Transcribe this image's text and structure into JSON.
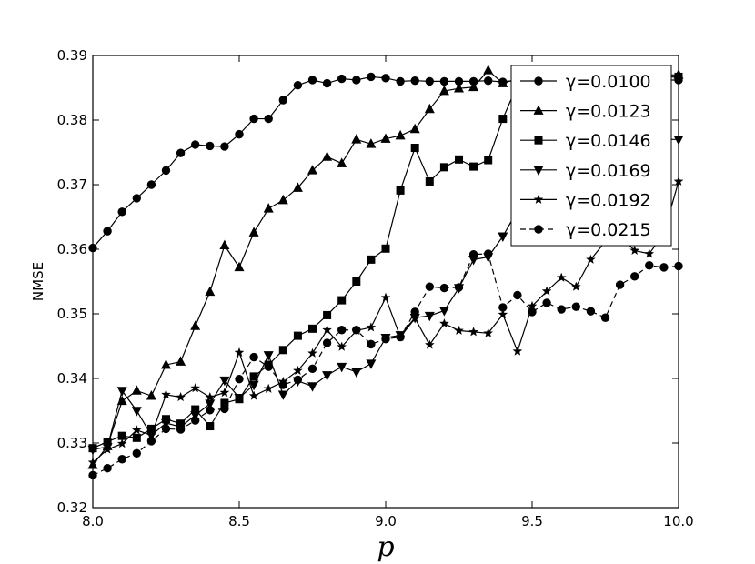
{
  "chart_data": {
    "type": "line",
    "xlabel": "p",
    "ylabel": "NMSE",
    "xlim": [
      8.0,
      10.0
    ],
    "ylim": [
      0.32,
      0.39
    ],
    "xticks": [
      "8.0",
      "8.5",
      "9.0",
      "9.5",
      "10.0"
    ],
    "yticks": [
      "0.32",
      "0.33",
      "0.34",
      "0.35",
      "0.36",
      "0.37",
      "0.38",
      "0.39"
    ],
    "xtick_values": [
      8.0,
      8.5,
      9.0,
      9.5,
      10.0
    ],
    "ytick_values": [
      0.32,
      0.33,
      0.34,
      0.35,
      0.36,
      0.37,
      0.38,
      0.39
    ],
    "legend_position": "top-right",
    "grid": false,
    "x": [
      8.0,
      8.05,
      8.1,
      8.15,
      8.2,
      8.25,
      8.3,
      8.35,
      8.4,
      8.45,
      8.5,
      8.55,
      8.6,
      8.65,
      8.7,
      8.75,
      8.8,
      8.85,
      8.9,
      8.95,
      9.0,
      9.05,
      9.1,
      9.15,
      9.2,
      9.25,
      9.3,
      9.35,
      9.4,
      9.45,
      9.5,
      9.55,
      9.6,
      9.65,
      9.7,
      9.75,
      9.8,
      9.85,
      9.9,
      9.95,
      10.0
    ],
    "series": [
      {
        "name": "γ=0.0100",
        "marker": "circle",
        "linestyle": "solid",
        "values": [
          0.3602,
          0.3628,
          0.3658,
          0.3679,
          0.37,
          0.3722,
          0.3749,
          0.3762,
          0.376,
          0.3759,
          0.3778,
          0.3802,
          0.3802,
          0.3831,
          0.3854,
          0.3862,
          0.3857,
          0.3864,
          0.3862,
          0.3867,
          0.3865,
          0.386,
          0.3861,
          0.386,
          0.386,
          0.386,
          0.386,
          0.3861,
          0.3859,
          0.3862,
          0.3862,
          0.3862,
          0.3862,
          0.3862,
          0.3862,
          0.3862,
          0.3862,
          0.3862,
          0.3862,
          0.3862,
          0.3862
        ]
      },
      {
        "name": "γ=0.0123",
        "marker": "triangle-up",
        "linestyle": "solid",
        "values": [
          0.3266,
          0.3295,
          0.3365,
          0.3381,
          0.3373,
          0.3421,
          0.3426,
          0.3481,
          0.3534,
          0.3606,
          0.3572,
          0.3626,
          0.3663,
          0.3676,
          0.3695,
          0.3722,
          0.3743,
          0.3733,
          0.377,
          0.3763,
          0.3771,
          0.3776,
          0.3786,
          0.3817,
          0.3845,
          0.3849,
          0.3851,
          0.3877,
          0.3857,
          0.3864,
          0.387,
          0.387,
          0.387,
          0.387,
          0.387,
          0.387,
          0.387,
          0.387,
          0.387,
          0.387,
          0.387
        ]
      },
      {
        "name": "γ=0.0146",
        "marker": "square",
        "linestyle": "solid",
        "values": [
          0.3292,
          0.3302,
          0.3311,
          0.3308,
          0.3322,
          0.3337,
          0.333,
          0.3352,
          0.3326,
          0.3362,
          0.3368,
          0.3403,
          0.3421,
          0.3444,
          0.3466,
          0.3477,
          0.3498,
          0.3521,
          0.355,
          0.3584,
          0.3601,
          0.3691,
          0.3757,
          0.3705,
          0.3727,
          0.3739,
          0.3728,
          0.3738,
          0.3802,
          0.3855,
          0.386,
          0.3862,
          0.3865,
          0.3865,
          0.3865,
          0.3865,
          0.3865,
          0.3866,
          0.3866,
          0.3866,
          0.3867
        ]
      },
      {
        "name": "γ=0.0169",
        "marker": "triangle-down",
        "linestyle": "solid",
        "values": [
          0.329,
          0.3294,
          0.3381,
          0.335,
          0.3312,
          0.3331,
          0.3325,
          0.3343,
          0.3361,
          0.3397,
          0.337,
          0.339,
          0.3436,
          0.3375,
          0.3396,
          0.3388,
          0.3405,
          0.3418,
          0.341,
          0.3423,
          0.3463,
          0.3467,
          0.3494,
          0.3497,
          0.3505,
          0.354,
          0.3584,
          0.3588,
          0.362,
          0.366,
          0.368,
          0.37,
          0.372,
          0.374,
          0.3755,
          0.3765,
          0.3768,
          0.377,
          0.377,
          0.377,
          0.377
        ]
      },
      {
        "name": "γ=0.0192",
        "marker": "star",
        "linestyle": "solid",
        "values": [
          0.327,
          0.329,
          0.3299,
          0.332,
          0.3312,
          0.3375,
          0.3371,
          0.3385,
          0.3371,
          0.3378,
          0.344,
          0.3373,
          0.3384,
          0.3395,
          0.3412,
          0.3439,
          0.3475,
          0.3449,
          0.3474,
          0.3479,
          0.3525,
          0.3464,
          0.3493,
          0.3452,
          0.3485,
          0.3474,
          0.3472,
          0.347,
          0.3499,
          0.3442,
          0.3512,
          0.3535,
          0.3556,
          0.3542,
          0.3584,
          0.3612,
          0.3621,
          0.3598,
          0.3593,
          0.3625,
          0.3705
        ]
      },
      {
        "name": "γ=0.0215",
        "marker": "circle",
        "linestyle": "dashed",
        "values": [
          0.325,
          0.3261,
          0.3275,
          0.3284,
          0.3303,
          0.3322,
          0.3321,
          0.3335,
          0.3351,
          0.3353,
          0.3399,
          0.3433,
          0.3418,
          0.339,
          0.3398,
          0.3415,
          0.3455,
          0.3475,
          0.3475,
          0.3453,
          0.3461,
          0.3464,
          0.3503,
          0.3542,
          0.354,
          0.3541,
          0.3592,
          0.3593,
          0.351,
          0.3529,
          0.3503,
          0.3517,
          0.3507,
          0.3511,
          0.3504,
          0.3494,
          0.3545,
          0.3558,
          0.3575,
          0.3572,
          0.3574
        ]
      }
    ]
  }
}
